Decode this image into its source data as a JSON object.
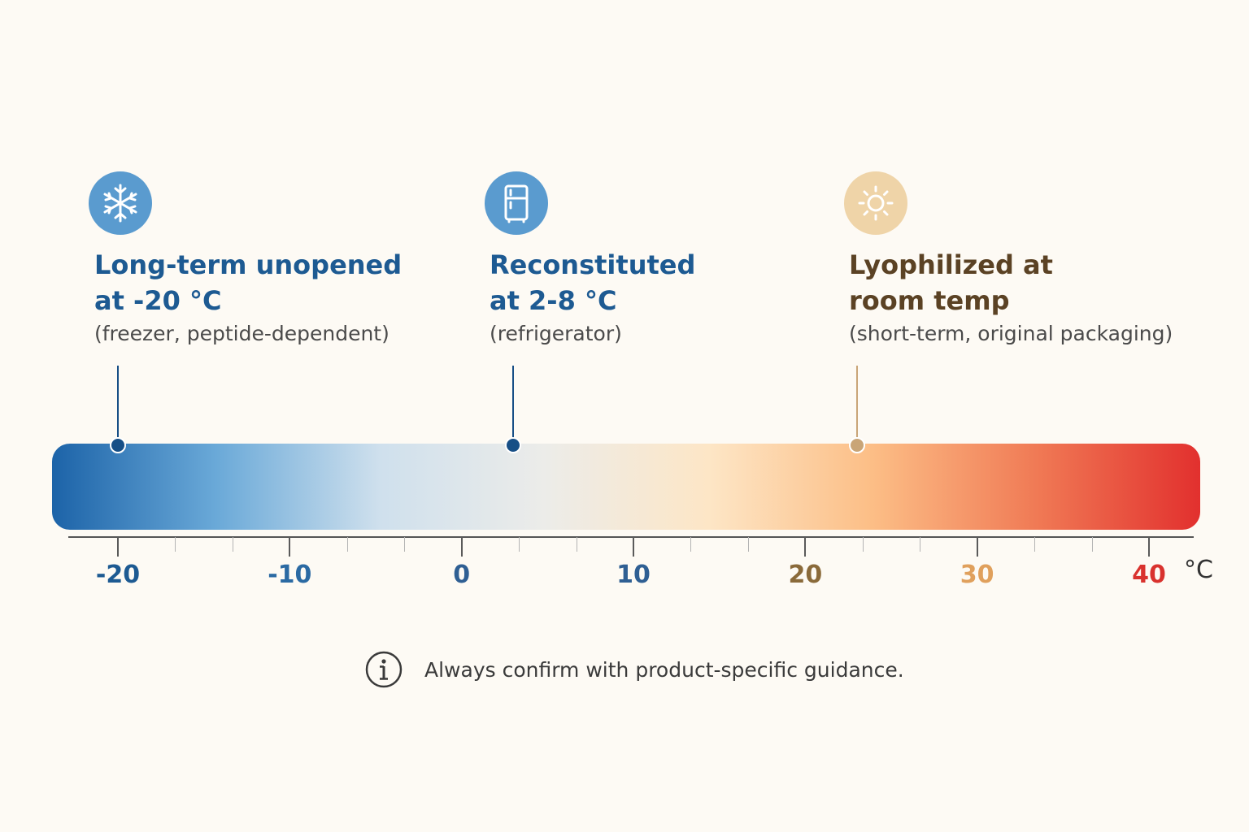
{
  "zones": [
    {
      "id": "freezer",
      "icon": "snowflake-icon",
      "title_line1": "Long-term unopened",
      "title_line2": "at -20 °C",
      "note": "(freezer, peptide-dependent)",
      "marker_temp": -20,
      "title_color": "#1d5a92",
      "icon_bg": "#5a9bcf",
      "pin_color": "#174f86"
    },
    {
      "id": "refrigerator",
      "icon": "refrigerator-icon",
      "title_line1": "Reconstituted",
      "title_line2": "at 2-8 °C",
      "note": "(refrigerator)",
      "marker_temp": 3,
      "title_color": "#1d5a92",
      "icon_bg": "#5a9bcf",
      "pin_color": "#174f86"
    },
    {
      "id": "room",
      "icon": "sun-icon",
      "title_line1": "Lyophilized at",
      "title_line2": "room temp",
      "note": "(short-term, original packaging)",
      "marker_temp": 23,
      "title_color": "#5b4224",
      "icon_bg": "#efd4a8",
      "pin_color": "#c9a577"
    }
  ],
  "scale": {
    "min": -20,
    "max": 40,
    "unit": "°C",
    "major_ticks": [
      {
        "value": -20,
        "label": "-20",
        "color": "#1d5a92"
      },
      {
        "value": -10,
        "label": "-10",
        "color": "#2b6aa3"
      },
      {
        "value": 0,
        "label": "0",
        "color": "#2f5f93"
      },
      {
        "value": 10,
        "label": "10",
        "color": "#2f5f93"
      },
      {
        "value": 20,
        "label": "20",
        "color": "#8a6a3a"
      },
      {
        "value": 30,
        "label": "30",
        "color": "#e0a05c"
      },
      {
        "value": 40,
        "label": "40",
        "color": "#d9322e"
      }
    ],
    "gradient_stops": [
      "#1c63a8",
      "#6aa9d8",
      "#cfe0ed",
      "#ecece9",
      "#fde6c6",
      "#fcbe86",
      "#f07a55",
      "#e2302e"
    ]
  },
  "footnote": {
    "icon": "info-icon",
    "text": "Always confirm with product-specific guidance."
  }
}
